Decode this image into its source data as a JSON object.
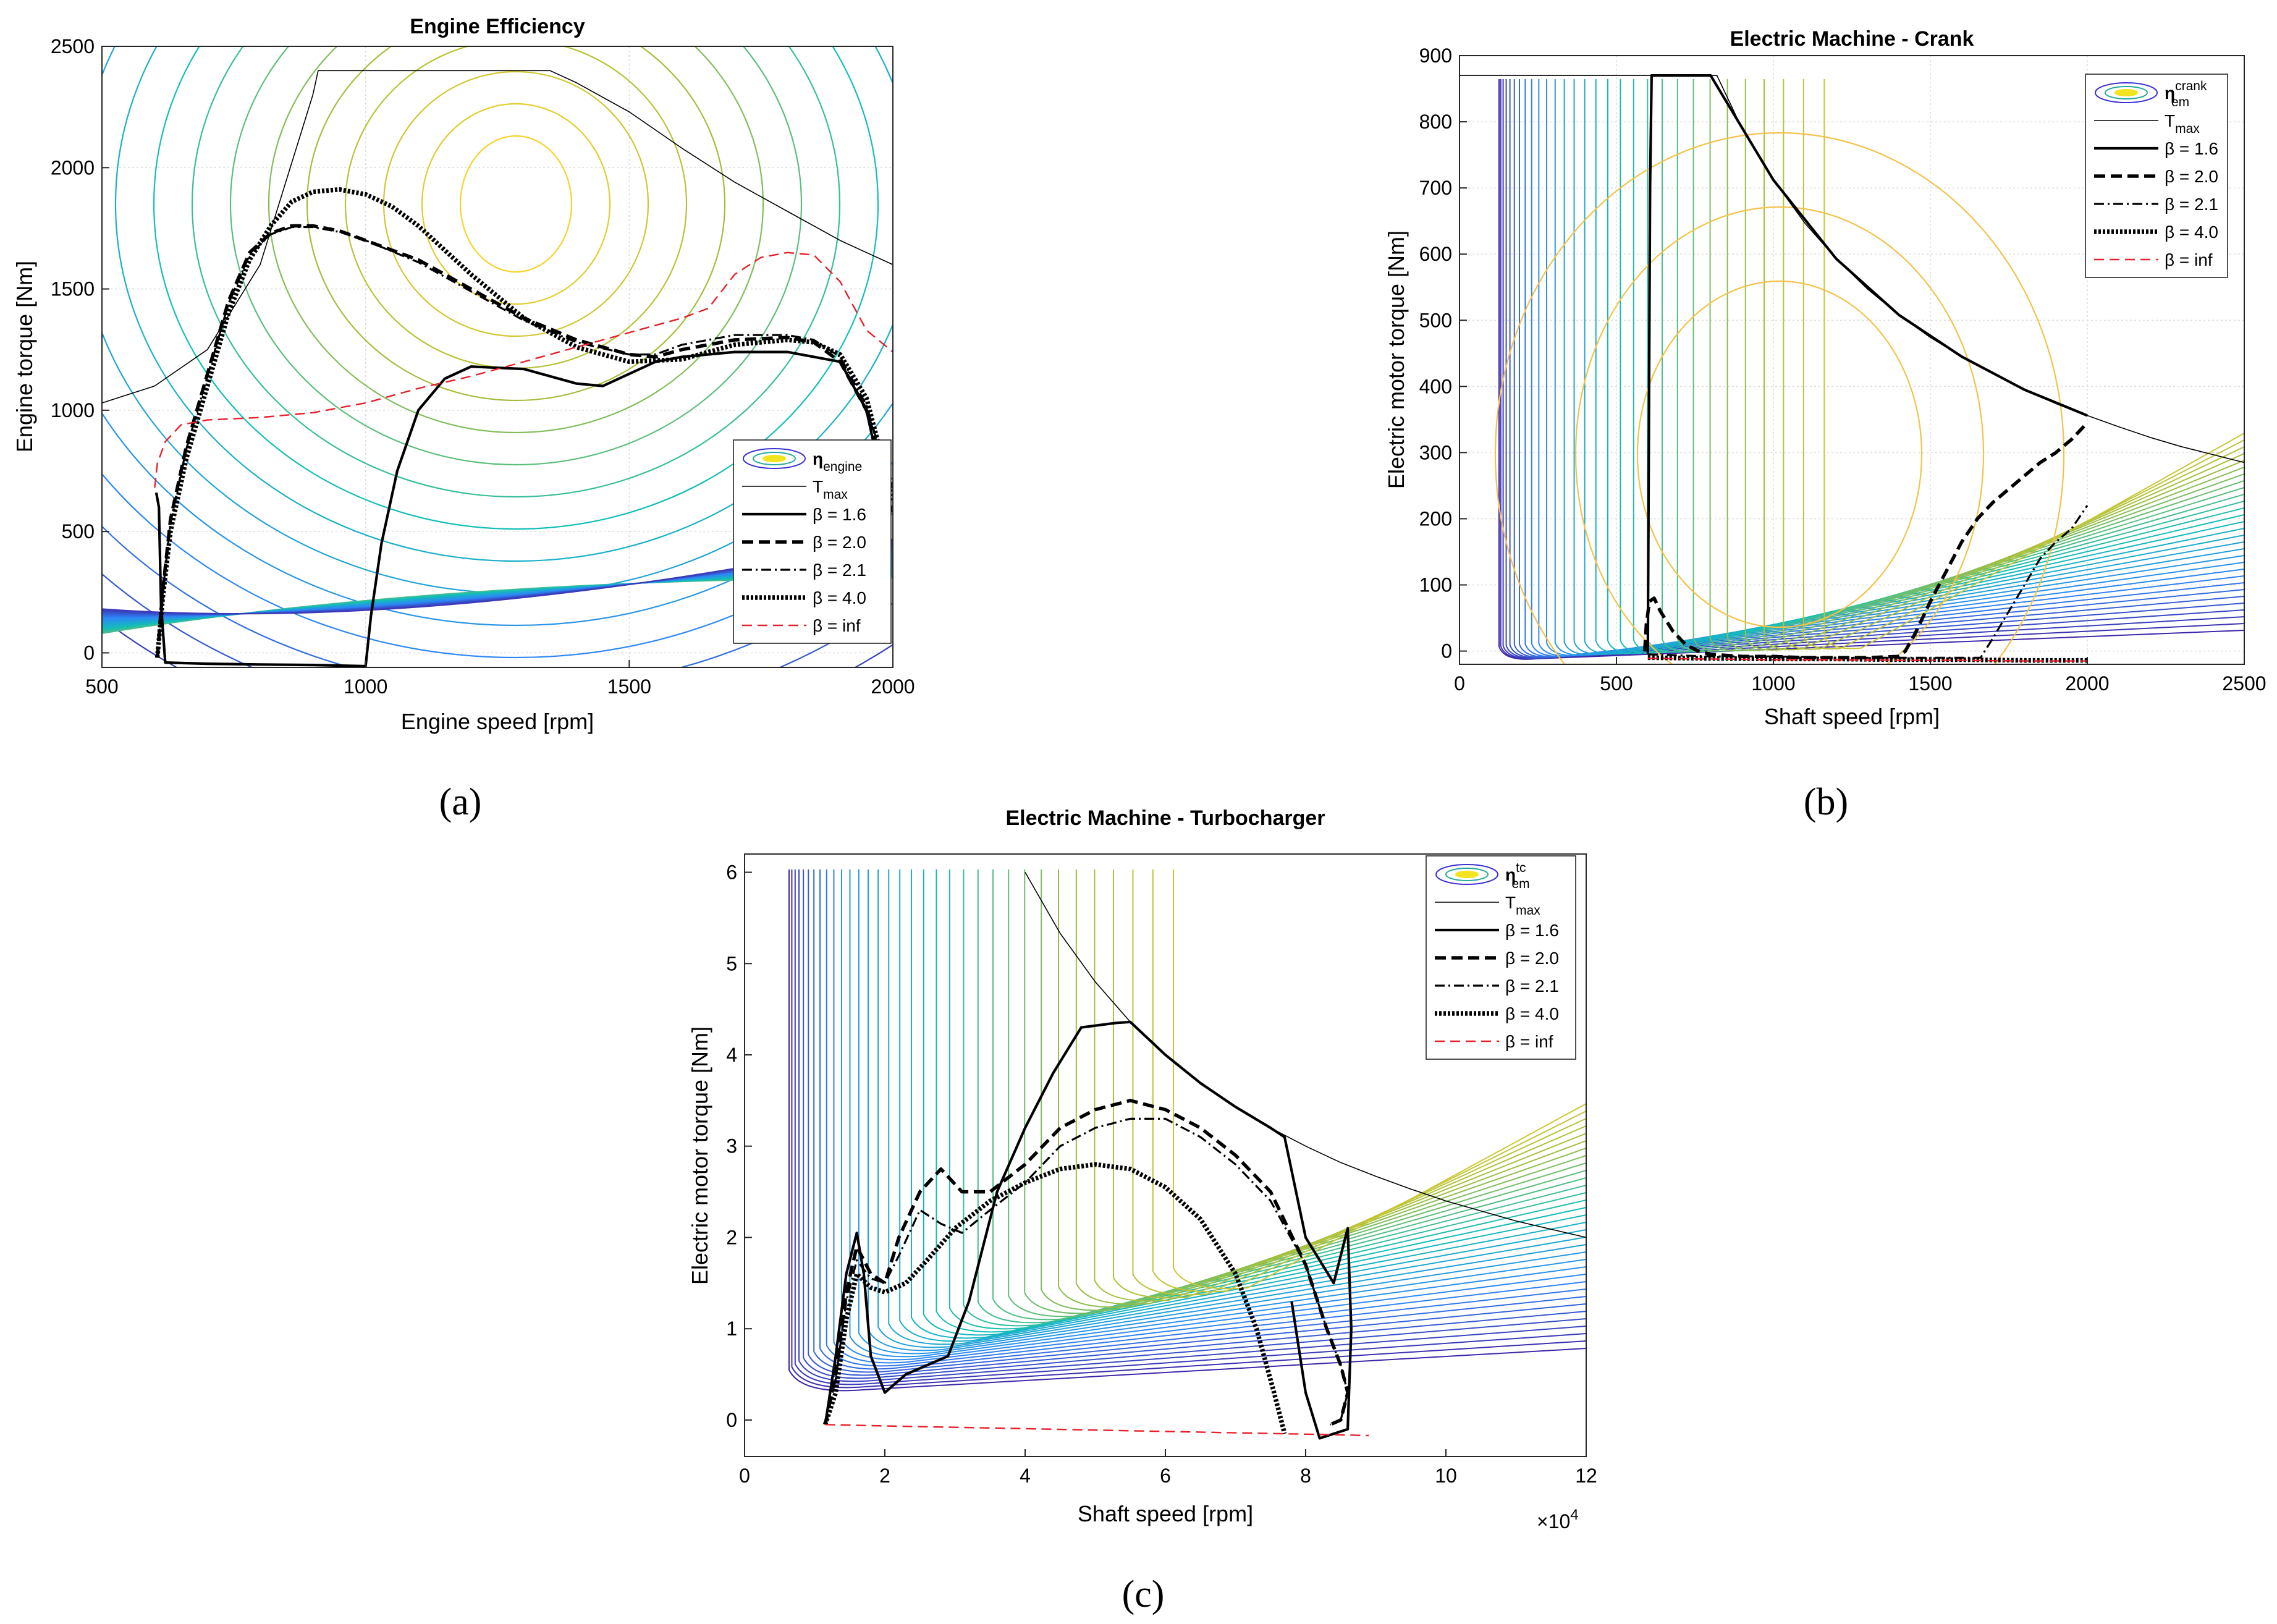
{
  "panels": [
    "(a)",
    "(b)",
    "(c)"
  ],
  "chart_data": [
    {
      "id": "a",
      "type": "line",
      "title": "Engine Efficiency",
      "xlabel": "Engine speed [rpm]",
      "ylabel": "Engine torque [Nm]",
      "xlim": [
        500,
        2000
      ],
      "ylim": [
        -60,
        2500
      ],
      "xticks": [
        500,
        1000,
        1500,
        2000
      ],
      "yticks": [
        0,
        500,
        1000,
        1500,
        2000,
        2500
      ],
      "grid": true,
      "legend_position": "lower-right",
      "legend": [
        {
          "key": "contour",
          "label": "η",
          "sub": "engine",
          "sup": ""
        },
        {
          "key": "tmax",
          "label": "T",
          "sub": "max",
          "sup": ""
        },
        {
          "key": "b16",
          "label": "β = 1.6",
          "sub": "",
          "sup": ""
        },
        {
          "key": "b20",
          "label": "β = 2.0",
          "sub": "",
          "sup": ""
        },
        {
          "key": "b21",
          "label": "β = 2.1",
          "sub": "",
          "sup": ""
        },
        {
          "key": "b40",
          "label": "β = 4.0",
          "sub": "",
          "sup": ""
        },
        {
          "key": "binf",
          "label": "β = inf",
          "sub": "",
          "sup": ""
        }
      ],
      "series": [
        {
          "name": "T_max",
          "key": "tmax",
          "x": [
            500,
            600,
            700,
            800,
            900,
            910,
            1000,
            1100,
            1200,
            1300,
            1350,
            1400,
            1500,
            1600,
            1700,
            1800,
            1900,
            2000
          ],
          "y": [
            1030,
            1100,
            1250,
            1600,
            2300,
            2400,
            2400,
            2400,
            2400,
            2400,
            2400,
            2350,
            2230,
            2080,
            1940,
            1820,
            1700,
            1600
          ]
        },
        {
          "name": "β = 1.6",
          "key": "b16",
          "x": [
            603,
            608,
            612,
            620,
            700,
            800,
            900,
            1000,
            1010,
            1030,
            1060,
            1100,
            1150,
            1200,
            1300,
            1400,
            1450,
            1500,
            1550,
            1600,
            1700,
            1800,
            1900,
            1950,
            1980,
            2000
          ],
          "y": [
            660,
            600,
            200,
            -40,
            -45,
            -48,
            -50,
            -55,
            150,
            450,
            750,
            1000,
            1130,
            1180,
            1170,
            1110,
            1100,
            1150,
            1200,
            1220,
            1240,
            1240,
            1200,
            1000,
            700,
            580
          ]
        },
        {
          "name": "β = 2.0",
          "key": "b20",
          "x": [
            605,
            615,
            630,
            660,
            700,
            740,
            780,
            820,
            860,
            900,
            950,
            1000,
            1100,
            1200,
            1300,
            1400,
            1500,
            1550,
            1600,
            1700,
            1800,
            1850,
            1900,
            1950,
            1980,
            2000
          ],
          "y": [
            -20,
            250,
            550,
            850,
            1150,
            1450,
            1650,
            1730,
            1760,
            1760,
            1740,
            1700,
            1620,
            1500,
            1380,
            1290,
            1230,
            1220,
            1250,
            1290,
            1300,
            1280,
            1200,
            1000,
            780,
            680
          ]
        },
        {
          "name": "β = 2.1",
          "key": "b21",
          "x": [
            605,
            615,
            630,
            660,
            700,
            740,
            780,
            820,
            860,
            900,
            950,
            1000,
            1100,
            1200,
            1300,
            1400,
            1500,
            1550,
            1600,
            1700,
            1800,
            1850,
            1900,
            1950,
            1980,
            2000
          ],
          "y": [
            -20,
            240,
            540,
            840,
            1140,
            1440,
            1640,
            1725,
            1755,
            1755,
            1735,
            1700,
            1610,
            1490,
            1370,
            1280,
            1230,
            1230,
            1270,
            1310,
            1310,
            1290,
            1220,
            1020,
            800,
            700
          ]
        },
        {
          "name": "β = 4.0",
          "key": "b40",
          "x": [
            605,
            615,
            630,
            660,
            700,
            740,
            780,
            820,
            860,
            900,
            950,
            1000,
            1050,
            1100,
            1200,
            1300,
            1400,
            1500,
            1600,
            1700,
            1800,
            1850,
            1900,
            1950,
            1980,
            2000
          ],
          "y": [
            -20,
            220,
            500,
            800,
            1100,
            1400,
            1620,
            1760,
            1860,
            1900,
            1910,
            1890,
            1840,
            1760,
            1560,
            1380,
            1260,
            1200,
            1210,
            1270,
            1290,
            1280,
            1230,
            1050,
            800,
            620
          ]
        },
        {
          "name": "β = inf",
          "key": "binf",
          "x": [
            600,
            605,
            620,
            650,
            700,
            800,
            900,
            1000,
            1100,
            1200,
            1300,
            1400,
            1500,
            1600,
            1650,
            1700,
            1750,
            1800,
            1850,
            1900,
            1950,
            2000
          ],
          "y": [
            680,
            780,
            870,
            940,
            960,
            970,
            990,
            1030,
            1090,
            1140,
            1200,
            1260,
            1320,
            1380,
            1420,
            1560,
            1630,
            1650,
            1640,
            1530,
            1330,
            1240
          ]
        }
      ]
    },
    {
      "id": "b",
      "type": "line",
      "title": "Electric Machine - Crank",
      "xlabel": "Shaft speed [rpm]",
      "ylabel": "Electric motor torque [Nm]",
      "xlim": [
        0,
        2500
      ],
      "ylim": [
        -20,
        900
      ],
      "xticks": [
        0,
        500,
        1000,
        1500,
        2000,
        2500
      ],
      "yticks": [
        0,
        100,
        200,
        300,
        400,
        500,
        600,
        700,
        800,
        900
      ],
      "grid": true,
      "legend_position": "top-right",
      "legend": [
        {
          "key": "contour",
          "label": "η",
          "sub": "em",
          "sup": "crank"
        },
        {
          "key": "tmax",
          "label": "T",
          "sub": "max",
          "sup": ""
        },
        {
          "key": "b16",
          "label": "β = 1.6",
          "sub": "",
          "sup": ""
        },
        {
          "key": "b20",
          "label": "β = 2.0",
          "sub": "",
          "sup": ""
        },
        {
          "key": "b21",
          "label": "β = 2.1",
          "sub": "",
          "sup": ""
        },
        {
          "key": "b40",
          "label": "β = 4.0",
          "sub": "",
          "sup": ""
        },
        {
          "key": "binf",
          "label": "β = inf",
          "sub": "",
          "sup": ""
        }
      ],
      "series": [
        {
          "name": "T_max",
          "key": "tmax",
          "x": [
            0,
            100,
            200,
            300,
            400,
            500,
            600,
            700,
            800,
            820,
            900,
            1000,
            1100,
            1200,
            1300,
            1400,
            1500,
            1600,
            1700,
            1800,
            1900,
            2000,
            2100,
            2200,
            2300,
            2400,
            2500
          ],
          "y": [
            870,
            870,
            870,
            870,
            870,
            870,
            870,
            870,
            870,
            870,
            790,
            712,
            647,
            593,
            547,
            508,
            474,
            445,
            419,
            395,
            374,
            356,
            339,
            323,
            309,
            297,
            285
          ]
        },
        {
          "name": "β = 1.6",
          "key": "b16",
          "x": [
            600,
            603,
            607,
            612,
            700,
            800,
            1000,
            1200,
            1400,
            1600,
            1800,
            2000
          ],
          "y": [
            -5,
            300,
            700,
            870,
            870,
            870,
            712,
            593,
            508,
            445,
            395,
            356
          ]
        },
        {
          "name": "β = 2.0",
          "key": "b20",
          "x": [
            590,
            595,
            605,
            620,
            640,
            680,
            720,
            760,
            800,
            900,
            1000,
            1100,
            1200,
            1300,
            1400,
            1420,
            1450,
            1500,
            1550,
            1600,
            1650,
            1700,
            1750,
            1800,
            1850,
            1900,
            1950,
            2000
          ],
          "y": [
            0,
            40,
            75,
            80,
            60,
            30,
            10,
            0,
            -5,
            -8,
            -8,
            -10,
            -10,
            -10,
            -8,
            0,
            25,
            75,
            120,
            165,
            200,
            225,
            245,
            265,
            285,
            300,
            320,
            345
          ]
        },
        {
          "name": "β = 2.1",
          "key": "b21",
          "x": [
            600,
            800,
            1000,
            1200,
            1400,
            1600,
            1660,
            1700,
            1750,
            1800,
            1850,
            1900,
            1950,
            2000
          ],
          "y": [
            -5,
            -8,
            -8,
            -10,
            -10,
            -10,
            -10,
            20,
            60,
            100,
            140,
            165,
            185,
            220
          ]
        },
        {
          "name": "β = 4.0",
          "key": "b40",
          "x": [
            600,
            800,
            1000,
            1200,
            1400,
            1600,
            1800,
            2000
          ],
          "y": [
            -10,
            -11,
            -12,
            -12,
            -13,
            -13,
            -14,
            -14
          ]
        },
        {
          "name": "β = inf",
          "key": "binf",
          "x": [
            600,
            800,
            1000,
            1200,
            1400,
            1600,
            1800,
            2000
          ],
          "y": [
            -11,
            -12,
            -13,
            -13,
            -14,
            -14,
            -15,
            -15
          ]
        }
      ]
    },
    {
      "id": "c",
      "type": "line",
      "title": "Electric Machine - Turbocharger",
      "xlabel": "Shaft speed [rpm]",
      "ylabel": "Electric motor torque [Nm]",
      "xlim": [
        0,
        12
      ],
      "ylim": [
        -0.4,
        6.2
      ],
      "xticks": [
        0,
        2,
        4,
        6,
        8,
        10,
        12
      ],
      "yticks": [
        0,
        1,
        2,
        3,
        4,
        5,
        6
      ],
      "x_multiplier": "×10",
      "x_multiplier_exp": "4",
      "grid": false,
      "legend_position": "top-right",
      "legend": [
        {
          "key": "contour",
          "label": "η",
          "sub": "em",
          "sup": "tc"
        },
        {
          "key": "tmax",
          "label": "T",
          "sub": "max",
          "sup": ""
        },
        {
          "key": "b16",
          "label": "β = 1.6",
          "sub": "",
          "sup": ""
        },
        {
          "key": "b20",
          "label": "β = 2.0",
          "sub": "",
          "sup": ""
        },
        {
          "key": "b21",
          "label": "β = 2.1",
          "sub": "",
          "sup": ""
        },
        {
          "key": "b40",
          "label": "β = 4.0",
          "sub": "",
          "sup": ""
        },
        {
          "key": "binf",
          "label": "β = inf",
          "sub": "",
          "sup": ""
        }
      ],
      "series": [
        {
          "name": "T_max",
          "key": "tmax",
          "x": [
            4,
            4.5,
            5,
            5.5,
            6,
            6.5,
            7,
            7.5,
            8,
            8.5,
            9,
            9.5,
            10,
            10.5,
            11,
            11.5,
            12
          ],
          "y": [
            6,
            5.33,
            4.8,
            4.36,
            4.0,
            3.69,
            3.43,
            3.2,
            3.0,
            2.82,
            2.67,
            2.53,
            2.4,
            2.29,
            2.18,
            2.09,
            2.0
          ]
        },
        {
          "name": "β = 1.6",
          "key": "b16",
          "x": [
            1.15,
            1.3,
            1.45,
            1.6,
            1.7,
            1.8,
            2.0,
            2.3,
            2.6,
            2.9,
            3.2,
            3.6,
            4.0,
            4.4,
            4.8,
            5.3,
            5.5,
            6.0,
            6.5,
            7.0,
            7.5,
            7.7,
            8.0,
            8.4,
            8.6,
            8.65,
            8.6,
            8.4,
            8.2,
            8.0,
            7.8
          ],
          "y": [
            -0.05,
            0.7,
            1.6,
            2.05,
            1.6,
            0.7,
            0.3,
            0.5,
            0.6,
            0.7,
            1.3,
            2.5,
            3.2,
            3.8,
            4.3,
            4.35,
            4.36,
            4.0,
            3.69,
            3.43,
            3.2,
            3.1,
            2.0,
            1.5,
            2.1,
            1.0,
            -0.1,
            -0.15,
            -0.2,
            0.3,
            1.3
          ]
        },
        {
          "name": "β = 2.0",
          "key": "b20",
          "x": [
            1.15,
            1.3,
            1.45,
            1.6,
            1.8,
            2.0,
            2.2,
            2.5,
            2.8,
            3.1,
            3.5,
            4.0,
            4.5,
            5.0,
            5.5,
            6.0,
            6.5,
            7.0,
            7.5,
            8.0,
            8.3,
            8.5,
            8.6,
            8.5,
            8.35
          ],
          "y": [
            -0.05,
            0.5,
            1.4,
            1.9,
            1.6,
            1.5,
            2.0,
            2.5,
            2.75,
            2.5,
            2.5,
            2.8,
            3.2,
            3.4,
            3.5,
            3.4,
            3.2,
            2.9,
            2.5,
            1.7,
            1.0,
            0.6,
            0.3,
            0.0,
            -0.05
          ]
        },
        {
          "name": "β = 2.1",
          "key": "b21",
          "x": [
            1.15,
            1.3,
            1.45,
            1.6,
            1.8,
            2.0,
            2.2,
            2.5,
            2.8,
            3.1,
            3.5,
            4.0,
            4.5,
            5.0,
            5.5,
            6.0,
            6.5,
            7.0,
            7.5,
            8.0,
            8.3,
            8.5,
            8.6,
            8.5,
            8.35
          ],
          "y": [
            -0.05,
            0.45,
            1.3,
            1.75,
            1.55,
            1.5,
            1.8,
            2.3,
            2.15,
            2.05,
            2.3,
            2.6,
            3.0,
            3.2,
            3.3,
            3.3,
            3.1,
            2.8,
            2.4,
            1.7,
            1.0,
            0.6,
            0.3,
            0.0,
            -0.05
          ]
        },
        {
          "name": "β = 4.0",
          "key": "b40",
          "x": [
            1.15,
            1.3,
            1.45,
            1.6,
            1.8,
            2.0,
            2.3,
            2.6,
            3.0,
            3.5,
            4.0,
            4.5,
            5.0,
            5.5,
            6.0,
            6.5,
            7.0,
            7.3,
            7.55,
            7.65,
            7.7
          ],
          "y": [
            -0.05,
            0.3,
            1.1,
            1.6,
            1.45,
            1.4,
            1.5,
            1.75,
            2.1,
            2.4,
            2.6,
            2.75,
            2.8,
            2.75,
            2.55,
            2.2,
            1.6,
            1.0,
            0.3,
            0.0,
            -0.15
          ]
        },
        {
          "name": "β = inf",
          "key": "binf",
          "x": [
            1.15,
            2,
            3,
            4,
            5,
            6,
            7,
            8,
            8.9
          ],
          "y": [
            -0.05,
            -0.065,
            -0.08,
            -0.095,
            -0.11,
            -0.125,
            -0.14,
            -0.155,
            -0.17
          ]
        }
      ]
    }
  ]
}
